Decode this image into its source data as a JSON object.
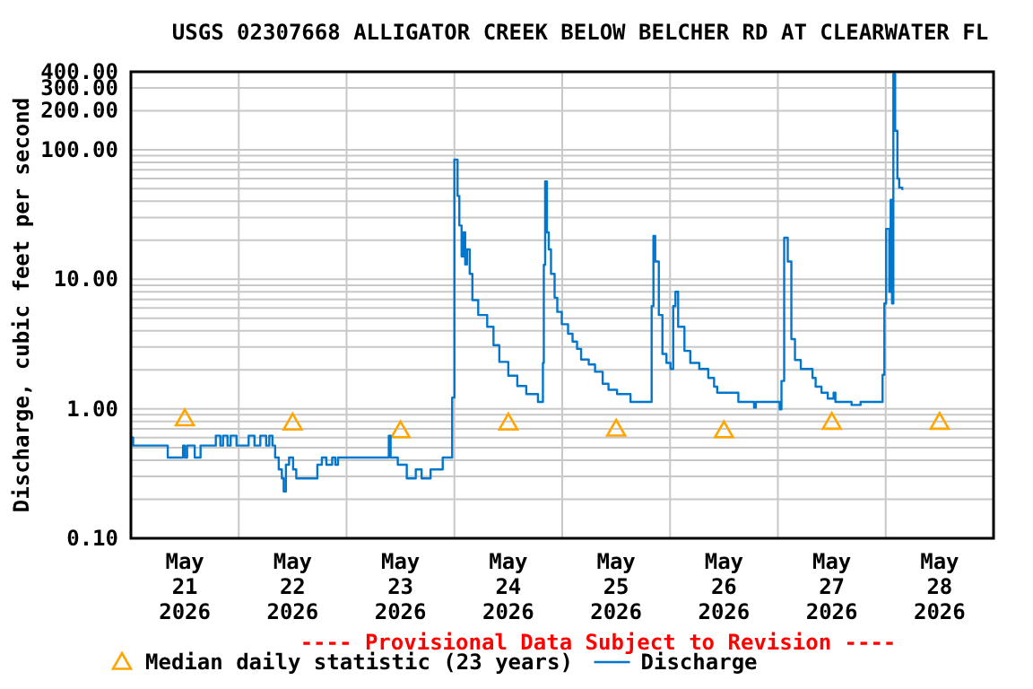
{
  "chart_data": {
    "type": "step",
    "title": "USGS 02307668 ALLIGATOR CREEK BELOW BELCHER RD AT CLEARWATER FL",
    "ylabel": "Discharge, cubic feet per second",
    "annotations": [
      "---- Provisional Data Subject to Revision ----"
    ],
    "xlim": [
      "2026-05-21T00:00",
      "2026-05-29T00:00"
    ],
    "xticks": [
      {
        "value": "2026-05-21T12:00",
        "label": "May 21 2026"
      },
      {
        "value": "2026-05-22T00:00",
        "label": null
      },
      {
        "value": "2026-05-22T12:00",
        "label": "May 22 2026"
      },
      {
        "value": "2026-05-23T00:00",
        "label": null
      },
      {
        "value": "2026-05-23T12:00",
        "label": "May 23 2026"
      },
      {
        "value": "2026-05-24T00:00",
        "label": null
      },
      {
        "value": "2026-05-24T12:00",
        "label": "May 24 2026"
      },
      {
        "value": "2026-05-25T00:00",
        "label": null
      },
      {
        "value": "2026-05-25T12:00",
        "label": "May 25 2026"
      },
      {
        "value": "2026-05-26T00:00",
        "label": null
      },
      {
        "value": "2026-05-26T12:00",
        "label": "May 26 2026"
      },
      {
        "value": "2026-05-27T00:00",
        "label": null
      },
      {
        "value": "2026-05-27T12:00",
        "label": "May 27 2026"
      },
      {
        "value": "2026-05-28T00:00",
        "label": null
      },
      {
        "value": "2026-05-28T12:00",
        "label": "May 28 2026"
      }
    ],
    "ylim": [
      0.1,
      400
    ],
    "log": true,
    "yticks": [
      {
        "value": 0.1,
        "label": "0.10"
      },
      {
        "value": 0.2,
        "label": null
      },
      {
        "value": 0.3,
        "label": null
      },
      {
        "value": 0.4,
        "label": null
      },
      {
        "value": 0.5,
        "label": null
      },
      {
        "value": 0.6,
        "label": null
      },
      {
        "value": 0.7,
        "label": null
      },
      {
        "value": 0.8,
        "label": null
      },
      {
        "value": 0.9,
        "label": null
      },
      {
        "value": 1,
        "label": "1.00"
      },
      {
        "value": 2,
        "label": null
      },
      {
        "value": 3,
        "label": null
      },
      {
        "value": 4,
        "label": null
      },
      {
        "value": 5,
        "label": null
      },
      {
        "value": 6,
        "label": null
      },
      {
        "value": 7,
        "label": null
      },
      {
        "value": 8,
        "label": null
      },
      {
        "value": 9,
        "label": null
      },
      {
        "value": 10,
        "label": "10.00"
      },
      {
        "value": 20,
        "label": null
      },
      {
        "value": 30,
        "label": null
      },
      {
        "value": 40,
        "label": null
      },
      {
        "value": 50,
        "label": null
      },
      {
        "value": 60,
        "label": null
      },
      {
        "value": 70,
        "label": null
      },
      {
        "value": 80,
        "label": null
      },
      {
        "value": 90,
        "label": null
      },
      {
        "value": 100,
        "label": "100.00"
      },
      {
        "value": 200,
        "label": "200.00"
      },
      {
        "value": 300,
        "label": "300.00"
      },
      {
        "value": 400,
        "label": "400.00"
      }
    ],
    "grid": true,
    "legend": "bottom",
    "series": [
      {
        "name": "Median daily statistic (23 years)",
        "type": "scatter",
        "marker": "triangle",
        "color": "#ffa500",
        "x": [
          "2026-05-21T12:00",
          "2026-05-22T12:00",
          "2026-05-23T12:00",
          "2026-05-24T12:00",
          "2026-05-25T12:00",
          "2026-05-26T12:00",
          "2026-05-27T12:00",
          "2026-05-28T12:00"
        ],
        "values": [
          0.84,
          0.78,
          0.68,
          0.78,
          0.7,
          0.68,
          0.79,
          0.79
        ]
      },
      {
        "name": "Discharge",
        "color": "#0077cc",
        "x": [
          "2026-05-21T00:00",
          "2026-05-21T00:30",
          "2026-05-21T08:12",
          "2026-05-21T11:36",
          "2026-05-21T12:00",
          "2026-05-21T12:30",
          "2026-05-21T14:12",
          "2026-05-21T15:30",
          "2026-05-21T18:54",
          "2026-05-21T19:54",
          "2026-05-21T20:30",
          "2026-05-21T21:30",
          "2026-05-21T22:12",
          "2026-05-21T23:30",
          "2026-05-22T02:12",
          "2026-05-22T03:30",
          "2026-05-22T04:48",
          "2026-05-22T06:06",
          "2026-05-22T06:48",
          "2026-05-22T07:30",
          "2026-05-22T08:06",
          "2026-05-22T08:54",
          "2026-05-22T09:36",
          "2026-05-22T10:00",
          "2026-05-22T10:30",
          "2026-05-22T11:12",
          "2026-05-22T12:06",
          "2026-05-22T12:48",
          "2026-05-22T17:30",
          "2026-05-22T18:30",
          "2026-05-22T19:30",
          "2026-05-22T20:48",
          "2026-05-22T21:30",
          "2026-05-22T22:06",
          "2026-05-23T09:24",
          "2026-05-23T09:48",
          "2026-05-23T11:24",
          "2026-05-23T13:24",
          "2026-05-23T15:24",
          "2026-05-23T16:42",
          "2026-05-23T18:42",
          "2026-05-23T21:24",
          "2026-05-23T23:30",
          "2026-05-24T00:00",
          "2026-05-24T00:42",
          "2026-05-24T01:06",
          "2026-05-24T01:36",
          "2026-05-24T02:00",
          "2026-05-24T02:24",
          "2026-05-24T02:48",
          "2026-05-24T03:24",
          "2026-05-24T04:00",
          "2026-05-24T05:18",
          "2026-05-24T07:18",
          "2026-05-24T08:42",
          "2026-05-24T10:00",
          "2026-05-24T12:00",
          "2026-05-24T14:00",
          "2026-05-24T16:00",
          "2026-05-24T18:36",
          "2026-05-24T19:42",
          "2026-05-24T19:54",
          "2026-05-24T20:12",
          "2026-05-24T20:36",
          "2026-05-24T21:00",
          "2026-05-24T21:30",
          "2026-05-24T22:18",
          "2026-05-24T22:54",
          "2026-05-24T23:54",
          "2026-05-25T01:18",
          "2026-05-25T02:18",
          "2026-05-25T03:18",
          "2026-05-25T04:12",
          "2026-05-25T05:54",
          "2026-05-25T07:18",
          "2026-05-25T09:00",
          "2026-05-25T10:18",
          "2026-05-25T12:12",
          "2026-05-25T15:12",
          "2026-05-25T19:54",
          "2026-05-25T20:18",
          "2026-05-25T20:42",
          "2026-05-25T21:30",
          "2026-05-25T22:18",
          "2026-05-25T23:12",
          "2026-05-26T00:06",
          "2026-05-26T00:42",
          "2026-05-26T01:12",
          "2026-05-26T01:48",
          "2026-05-26T03:12",
          "2026-05-26T04:30",
          "2026-05-26T06:30",
          "2026-05-26T08:30",
          "2026-05-26T09:48",
          "2026-05-26T10:30",
          "2026-05-26T15:12",
          "2026-05-26T18:42",
          "2026-05-26T19:06",
          "2026-05-27T00:24",
          "2026-05-27T00:48",
          "2026-05-27T01:24",
          "2026-05-27T02:12",
          "2026-05-27T03:00",
          "2026-05-27T03:48",
          "2026-05-27T05:06",
          "2026-05-27T07:42",
          "2026-05-27T08:24",
          "2026-05-27T09:42",
          "2026-05-27T11:06",
          "2026-05-27T12:24",
          "2026-05-27T12:48",
          "2026-05-27T16:24",
          "2026-05-27T18:24",
          "2026-05-27T23:18",
          "2026-05-27T23:42",
          "2026-05-28T00:06",
          "2026-05-28T00:48",
          "2026-05-28T01:06",
          "2026-05-28T01:24",
          "2026-05-28T01:42",
          "2026-05-28T02:06",
          "2026-05-28T02:36",
          "2026-05-28T03:00",
          "2026-05-28T03:42"
        ],
        "values": [
          0.6,
          0.52,
          0.42,
          0.52,
          0.42,
          0.52,
          0.42,
          0.52,
          0.62,
          0.52,
          0.62,
          0.52,
          0.62,
          0.52,
          0.62,
          0.52,
          0.62,
          0.52,
          0.62,
          0.52,
          0.42,
          0.34,
          0.29,
          0.23,
          0.37,
          0.42,
          0.34,
          0.29,
          0.37,
          0.42,
          0.37,
          0.42,
          0.37,
          0.42,
          0.62,
          0.42,
          0.37,
          0.29,
          0.34,
          0.29,
          0.34,
          0.42,
          1.22,
          84,
          44,
          26,
          15,
          23,
          13,
          17,
          11,
          6.9,
          5.3,
          4.3,
          3.1,
          2.3,
          1.8,
          1.5,
          1.3,
          1.13,
          2.26,
          12.9,
          57,
          23,
          17,
          11,
          7.2,
          5.6,
          4.5,
          3.8,
          3.3,
          2.9,
          2.4,
          2.2,
          1.93,
          1.56,
          1.4,
          1.3,
          1.13,
          6.2,
          21.6,
          13.7,
          5.3,
          2.65,
          2.26,
          2.03,
          6.2,
          8,
          4.3,
          2.8,
          2.26,
          2.03,
          1.73,
          1.48,
          1.33,
          1.13,
          1.02,
          1.13,
          0.99,
          1.64,
          20.9,
          13.7,
          3.45,
          2.38,
          2.03,
          1.73,
          1.48,
          1.33,
          1.2,
          1.33,
          1.13,
          1.07,
          1.13,
          1.83,
          6.5,
          24.5,
          8,
          41,
          6.5,
          384,
          140,
          60,
          51,
          49
        ]
      }
    ]
  }
}
